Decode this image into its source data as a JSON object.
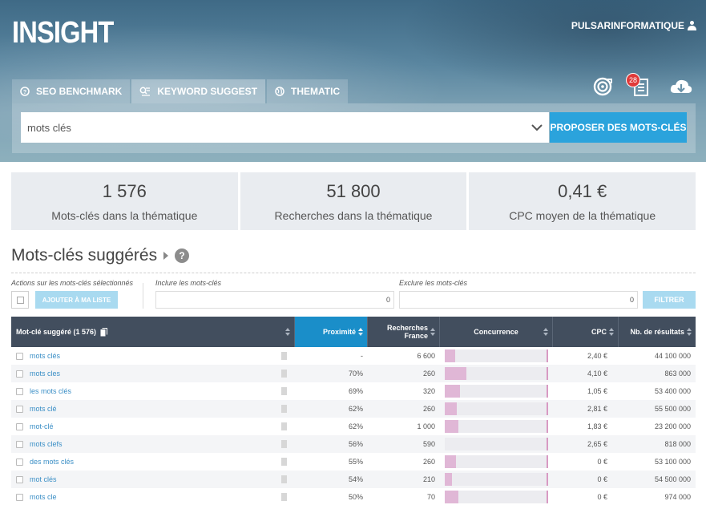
{
  "app": {
    "title": "INSIGHT",
    "username": "PULSARINFORMATIQUE"
  },
  "tabs": [
    {
      "label": "SEO BENCHMARK",
      "icon": "question-circle-icon"
    },
    {
      "label": "KEYWORD SUGGEST",
      "icon": "keyword-list-icon"
    },
    {
      "label": "THEMATIC",
      "icon": "globe-icon"
    }
  ],
  "toolbar_icons": {
    "notifications_count": "28"
  },
  "search": {
    "value": "mots clés",
    "button_label": "PROPOSER DES MOTS-CLÉS"
  },
  "stats": [
    {
      "value": "1 576",
      "label": "Mots-clés dans la thématique"
    },
    {
      "value": "51 800",
      "label": "Recherches dans la thématique"
    },
    {
      "value": "0,41 €",
      "label": "CPC moyen de la thématique"
    }
  ],
  "section": {
    "title": "Mots-clés suggérés",
    "help": "?"
  },
  "filters": {
    "actions_label": "Actions sur les mots-clés sélectionnés",
    "add_button": "AJOUTER À MA LISTE",
    "include_label": "Inclure les mots-clés",
    "include_value": "0",
    "exclude_label": "Exclure les mots-clés",
    "exclude_value": "0",
    "filter_button": "FILTRER"
  },
  "table": {
    "headers": {
      "keyword": "Mot-clé suggéré (1 576)",
      "proximity": "Proximité",
      "searches_line1": "Recherches",
      "searches_line2": "France",
      "competition": "Concurrence",
      "cpc": "CPC",
      "results": "Nb. de résultats"
    },
    "rows": [
      {
        "keyword": "mots clés",
        "proximity": "-",
        "searches": "6 600",
        "competition": 0.1,
        "cpc": "2,40 €",
        "results": "44 100 000"
      },
      {
        "keyword": "mots cles",
        "proximity": "70%",
        "searches": "260",
        "competition": 0.21,
        "cpc": "4,10 €",
        "results": "863 000"
      },
      {
        "keyword": "les mots clés",
        "proximity": "69%",
        "searches": "320",
        "competition": 0.15,
        "cpc": "1,05 €",
        "results": "53 400 000"
      },
      {
        "keyword": "mots clé",
        "proximity": "62%",
        "searches": "260",
        "competition": 0.12,
        "cpc": "2,81 €",
        "results": "55 500 000"
      },
      {
        "keyword": "mot-clé",
        "proximity": "62%",
        "searches": "1 000",
        "competition": 0.13,
        "cpc": "1,83 €",
        "results": "23 200 000"
      },
      {
        "keyword": "mots clefs",
        "proximity": "56%",
        "searches": "590",
        "competition": 0.0,
        "cpc": "2,65 €",
        "results": "818 000"
      },
      {
        "keyword": "des mots clés",
        "proximity": "55%",
        "searches": "260",
        "competition": 0.11,
        "cpc": "0 €",
        "results": "53 100 000"
      },
      {
        "keyword": "mot clés",
        "proximity": "54%",
        "searches": "210",
        "competition": 0.07,
        "cpc": "0 €",
        "results": "54 500 000"
      },
      {
        "keyword": "mots cle",
        "proximity": "50%",
        "searches": "70",
        "competition": 0.13,
        "cpc": "0 €",
        "results": "974 000"
      }
    ]
  }
}
